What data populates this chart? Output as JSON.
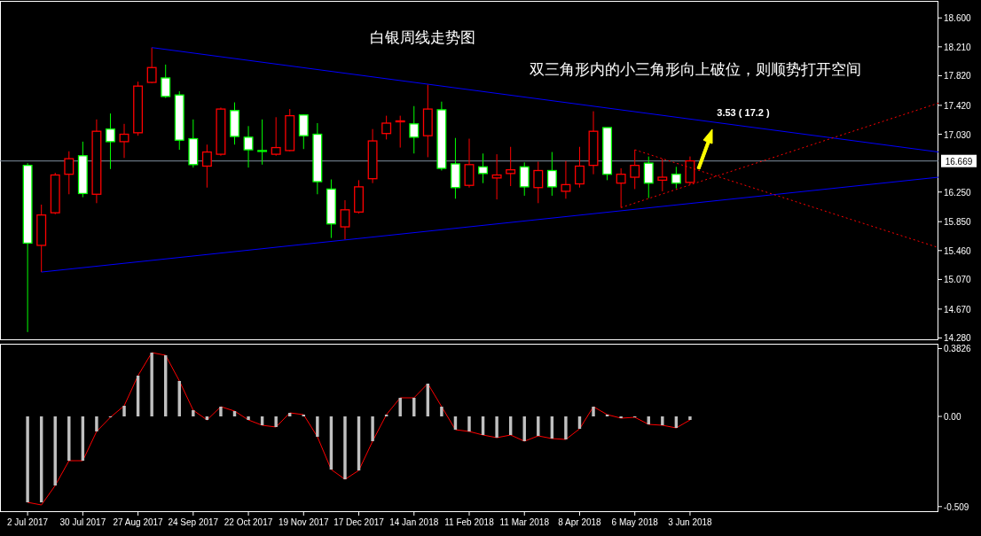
{
  "chart_data": [
    {
      "type": "candlestick",
      "title": "白银周线走势图",
      "subtitle": "双三角形内的小三角形向上破位，则顺势打开空间",
      "annotations": [
        "3.53 ( 17.2 )"
      ],
      "x": [
        "2017-07-02",
        "2017-07-09",
        "2017-07-16",
        "2017-07-23",
        "2017-07-30",
        "2017-08-06",
        "2017-08-13",
        "2017-08-20",
        "2017-08-27",
        "2017-09-03",
        "2017-09-10",
        "2017-09-17",
        "2017-09-24",
        "2017-10-01",
        "2017-10-08",
        "2017-10-15",
        "2017-10-22",
        "2017-10-29",
        "2017-11-05",
        "2017-11-12",
        "2017-11-19",
        "2017-11-26",
        "2017-12-03",
        "2017-12-10",
        "2017-12-17",
        "2017-12-24",
        "2017-12-31",
        "2018-01-07",
        "2018-01-14",
        "2018-01-21",
        "2018-01-28",
        "2018-02-04",
        "2018-02-11",
        "2018-02-18",
        "2018-02-25",
        "2018-03-04",
        "2018-03-11",
        "2018-03-18",
        "2018-03-25",
        "2018-04-01",
        "2018-04-08",
        "2018-04-15",
        "2018-04-22",
        "2018-04-29",
        "2018-05-06",
        "2018-05-13",
        "2018-05-20",
        "2018-05-27",
        "2018-06-03"
      ],
      "ohlc": [
        [
          16.61,
          16.64,
          14.36,
          15.56
        ],
        [
          15.53,
          16.08,
          15.17,
          15.94
        ],
        [
          15.97,
          16.51,
          15.95,
          16.48
        ],
        [
          16.49,
          16.8,
          16.22,
          16.7
        ],
        [
          16.74,
          16.93,
          16.18,
          16.23
        ],
        [
          16.22,
          17.23,
          16.1,
          17.07
        ],
        [
          17.1,
          17.31,
          16.56,
          16.93
        ],
        [
          16.93,
          17.17,
          16.71,
          17.03
        ],
        [
          17.05,
          17.74,
          17.01,
          17.68
        ],
        [
          17.73,
          18.2,
          17.72,
          17.93
        ],
        [
          17.79,
          17.97,
          17.52,
          17.54
        ],
        [
          17.56,
          17.61,
          16.82,
          16.95
        ],
        [
          16.97,
          17.23,
          16.58,
          16.62
        ],
        [
          16.6,
          16.89,
          16.31,
          16.79
        ],
        [
          16.76,
          17.39,
          16.74,
          17.37
        ],
        [
          17.35,
          17.46,
          16.89,
          17.0
        ],
        [
          16.99,
          17.14,
          16.58,
          16.82
        ],
        [
          16.81,
          17.23,
          16.62,
          16.8
        ],
        [
          16.76,
          17.26,
          16.74,
          16.85
        ],
        [
          16.81,
          17.37,
          16.8,
          17.28
        ],
        [
          17.29,
          17.3,
          16.83,
          17.01
        ],
        [
          17.03,
          17.18,
          16.22,
          16.39
        ],
        [
          16.29,
          16.42,
          15.63,
          15.82
        ],
        [
          15.78,
          16.14,
          15.61,
          16.01
        ],
        [
          15.98,
          16.41,
          15.96,
          16.32
        ],
        [
          16.43,
          17.1,
          16.37,
          16.94
        ],
        [
          17.04,
          17.28,
          16.96,
          17.18
        ],
        [
          17.2,
          17.28,
          16.85,
          17.21
        ],
        [
          17.17,
          17.41,
          16.77,
          16.99
        ],
        [
          17.01,
          17.7,
          16.72,
          17.37
        ],
        [
          17.36,
          17.47,
          16.54,
          16.57
        ],
        [
          16.63,
          16.98,
          16.16,
          16.31
        ],
        [
          16.34,
          16.97,
          16.31,
          16.62
        ],
        [
          16.59,
          16.77,
          16.37,
          16.5
        ],
        [
          16.44,
          16.76,
          16.15,
          16.48
        ],
        [
          16.5,
          16.86,
          16.33,
          16.55
        ],
        [
          16.59,
          16.65,
          16.2,
          16.32
        ],
        [
          16.31,
          16.66,
          16.1,
          16.54
        ],
        [
          16.54,
          16.79,
          16.2,
          16.32
        ],
        [
          16.26,
          16.67,
          16.16,
          16.35
        ],
        [
          16.36,
          16.86,
          16.31,
          16.6
        ],
        [
          16.61,
          17.34,
          16.49,
          17.07
        ],
        [
          17.12,
          17.12,
          16.41,
          16.49
        ],
        [
          16.37,
          16.57,
          16.04,
          16.49
        ],
        [
          16.45,
          16.82,
          16.29,
          16.61
        ],
        [
          16.64,
          16.73,
          16.17,
          16.37
        ],
        [
          16.41,
          16.7,
          16.26,
          16.45
        ],
        [
          16.49,
          16.59,
          16.3,
          16.37
        ],
        [
          16.38,
          16.73,
          16.35,
          16.67
        ]
      ],
      "colors": [
        "#00ff00",
        "#ff0000",
        "#ff0000",
        "#ff0000",
        "#00ff00",
        "#ff0000",
        "#00ff00",
        "#ff0000",
        "#ff0000",
        "#ff0000",
        "#00ff00",
        "#00ff00",
        "#00ff00",
        "#ff0000",
        "#ff0000",
        "#00ff00",
        "#00ff00",
        "#00ff00",
        "#ff0000",
        "#ff0000",
        "#00ff00",
        "#00ff00",
        "#00ff00",
        "#ff0000",
        "#ff0000",
        "#ff0000",
        "#ff0000",
        "#ff0000",
        "#00ff00",
        "#ff0000",
        "#00ff00",
        "#00ff00",
        "#ff0000",
        "#00ff00",
        "#ff0000",
        "#ff0000",
        "#00ff00",
        "#ff0000",
        "#00ff00",
        "#ff0000",
        "#ff0000",
        "#ff0000",
        "#00ff00",
        "#ff0000",
        "#ff0000",
        "#00ff00",
        "#ff0000",
        "#00ff00",
        "#ff0000"
      ],
      "series": [
        {
          "type": "line",
          "color": "#0000ff",
          "line_style": "solid",
          "x": [
            "2017-09-03",
            "2018-10-07"
          ],
          "values": [
            18.2,
            16.79
          ]
        },
        {
          "type": "line",
          "color": "#0000ff",
          "line_style": "solid",
          "x": [
            "2017-07-09",
            "2018-10-07"
          ],
          "values": [
            15.17,
            16.45
          ]
        },
        {
          "type": "line",
          "color": "#ff0000",
          "line_style": "dotted",
          "x": [
            "2018-05-06",
            "2018-10-07"
          ],
          "values": [
            16.82,
            15.5
          ]
        },
        {
          "type": "line",
          "color": "#ff0000",
          "line_style": "dotted",
          "x": [
            "2018-04-29",
            "2018-10-07"
          ],
          "values": [
            16.04,
            17.45
          ]
        }
      ],
      "ref_lines": [
        {
          "axis": "y",
          "value": 16.669,
          "label": "16.669",
          "color": "#8090a0"
        }
      ],
      "xlim": [
        "2017-06-18",
        "2018-10-07"
      ],
      "ylim": [
        14.25,
        18.83
      ],
      "yticks": [
        {
          "value": 18.6,
          "label": "18.600"
        },
        {
          "value": 18.21,
          "label": "18.210"
        },
        {
          "value": 17.82,
          "label": "17.820"
        },
        {
          "value": 17.42,
          "label": "17.420"
        },
        {
          "value": 17.03,
          "label": "17.030"
        },
        {
          "value": 16.25,
          "label": "16.250"
        },
        {
          "value": 15.85,
          "label": "15.850"
        },
        {
          "value": 15.46,
          "label": "15.460"
        },
        {
          "value": 15.07,
          "label": "15.070"
        },
        {
          "value": 14.67,
          "label": "14.670"
        },
        {
          "value": 14.28,
          "label": "14.280"
        }
      ],
      "tick_labels": "y"
    },
    {
      "type": "bar",
      "x": [
        "2017-07-02",
        "2017-07-09",
        "2017-07-16",
        "2017-07-23",
        "2017-07-30",
        "2017-08-06",
        "2017-08-13",
        "2017-08-20",
        "2017-08-27",
        "2017-09-03",
        "2017-09-10",
        "2017-09-17",
        "2017-09-24",
        "2017-10-01",
        "2017-10-08",
        "2017-10-15",
        "2017-10-22",
        "2017-10-29",
        "2017-11-05",
        "2017-11-12",
        "2017-11-19",
        "2017-11-26",
        "2017-12-03",
        "2017-12-10",
        "2017-12-17",
        "2017-12-24",
        "2017-12-31",
        "2018-01-07",
        "2018-01-14",
        "2018-01-21",
        "2018-01-28",
        "2018-02-04",
        "2018-02-11",
        "2018-02-18",
        "2018-02-25",
        "2018-03-04",
        "2018-03-11",
        "2018-03-18",
        "2018-03-25",
        "2018-04-01",
        "2018-04-08",
        "2018-04-15",
        "2018-04-22",
        "2018-04-29",
        "2018-05-06",
        "2018-05-13",
        "2018-05-20",
        "2018-05-27",
        "2018-06-03"
      ],
      "series": [
        {
          "type": "line",
          "color": "#ff0000",
          "line_style": "solid",
          "values": [
            -0.485,
            -0.5,
            -0.39,
            -0.25,
            -0.25,
            -0.085,
            -0.005,
            0.06,
            0.23,
            0.36,
            0.345,
            0.2,
            0.035,
            -0.02,
            0.055,
            0.03,
            -0.02,
            -0.05,
            -0.06,
            0.02,
            0.01,
            -0.115,
            -0.3,
            -0.355,
            -0.305,
            -0.14,
            0.01,
            0.105,
            0.105,
            0.185,
            0.055,
            -0.075,
            -0.085,
            -0.105,
            -0.12,
            -0.105,
            -0.14,
            -0.11,
            -0.125,
            -0.13,
            -0.07,
            0.055,
            0.01,
            -0.01,
            -0.005,
            -0.045,
            -0.05,
            -0.065,
            -0.02
          ]
        },
        {
          "type": "bar",
          "color": "#c0c0c0",
          "values": [
            -0.485,
            -0.485,
            -0.39,
            -0.25,
            -0.25,
            -0.085,
            -0.005,
            0.06,
            0.23,
            0.36,
            0.345,
            0.2,
            0.035,
            -0.02,
            0.055,
            0.03,
            -0.02,
            -0.05,
            -0.06,
            0.02,
            0.01,
            -0.115,
            -0.3,
            -0.355,
            -0.305,
            -0.14,
            0.01,
            0.105,
            0.105,
            0.185,
            0.055,
            -0.075,
            -0.085,
            -0.105,
            -0.12,
            -0.105,
            -0.14,
            -0.11,
            -0.125,
            -0.13,
            -0.07,
            0.055,
            0.01,
            -0.01,
            -0.005,
            -0.045,
            -0.05,
            -0.065,
            -0.02
          ]
        }
      ],
      "xlim": [
        "2017-06-18",
        "2018-10-07"
      ],
      "ylim": [
        -0.54,
        0.41
      ],
      "yticks": [
        0.3826,
        {
          "value": 0,
          "label": "0.00"
        },
        -0.509
      ],
      "xticks": [
        {
          "value": "2017-07-02",
          "label": "2 Jul 2017"
        },
        {
          "value": "2017-07-30",
          "label": "30 Jul 2017"
        },
        {
          "value": "2017-08-27",
          "label": "27 Aug 2017"
        },
        {
          "value": "2017-09-24",
          "label": "24 Sep 2017"
        },
        {
          "value": "2017-10-22",
          "label": "22 Oct 2017"
        },
        {
          "value": "2017-11-19",
          "label": "19 Nov 2017"
        },
        {
          "value": "2017-12-17",
          "label": "17 Dec 2017"
        },
        {
          "value": "2018-01-14",
          "label": "14 Jan 2018"
        },
        {
          "value": "2018-02-11",
          "label": "11 Feb 2018"
        },
        {
          "value": "2018-03-11",
          "label": "11 Mar 2018"
        },
        {
          "value": "2018-04-08",
          "label": "8 Apr 2018"
        },
        {
          "value": "2018-05-06",
          "label": "6 May 2018"
        },
        {
          "value": "2018-06-03",
          "label": "3 Jun 2018"
        }
      ]
    }
  ]
}
